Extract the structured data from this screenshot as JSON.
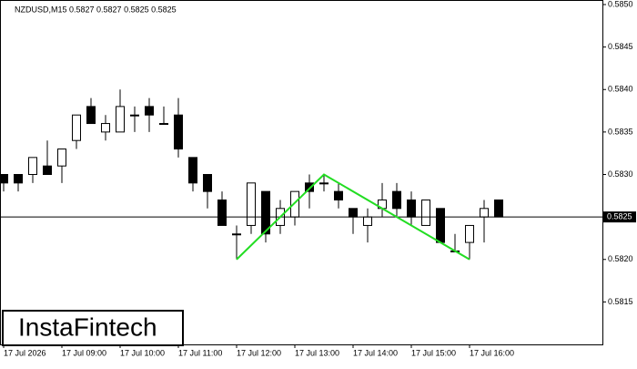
{
  "chart_data": {
    "type": "candlestick",
    "title": "NZDUSD,M15  0.5827 0.5827 0.5825 0.5825",
    "brand": "InstaFintech",
    "categories": [
      "17 Jul 2026",
      null,
      null,
      null,
      "17 Jul 09:00",
      null,
      null,
      null,
      "17 Jul 10:00",
      null,
      null,
      null,
      "17 Jul 11:00",
      null,
      null,
      null,
      "17 Jul 12:00",
      null,
      null,
      null,
      "17 Jul 13:00",
      null,
      null,
      null,
      "17 Jul 14:00",
      null,
      null,
      null,
      "17 Jul 15:00",
      null,
      null,
      null,
      "17 Jul 16:00",
      null,
      null
    ],
    "open": [
      0.583,
      0.583,
      0.583,
      0.5831,
      0.5831,
      0.5834,
      0.5838,
      0.5835,
      0.5835,
      0.5837,
      0.5838,
      0.5836,
      0.5837,
      0.5832,
      0.583,
      0.5827,
      0.5823,
      0.5824,
      0.5828,
      0.5824,
      0.5825,
      0.5829,
      0.5829,
      0.5828,
      0.5826,
      0.5824,
      0.5826,
      0.5828,
      0.5827,
      0.5824,
      0.5826,
      0.5821,
      0.5822,
      0.5825,
      0.5827
    ],
    "high": [
      0.583,
      0.583,
      0.5832,
      0.5834,
      0.5833,
      0.5837,
      0.5839,
      0.5837,
      0.584,
      0.5838,
      0.5839,
      0.5838,
      0.5839,
      0.5832,
      0.583,
      0.5828,
      0.5824,
      0.5829,
      0.5828,
      0.5827,
      0.5828,
      0.583,
      0.583,
      0.5829,
      0.5826,
      0.5826,
      0.5829,
      0.5829,
      0.5828,
      0.5827,
      0.5826,
      0.5823,
      0.5824,
      0.5827,
      0.5827
    ],
    "low": [
      0.5828,
      0.5828,
      0.5829,
      0.583,
      0.5829,
      0.5833,
      0.5836,
      0.5834,
      0.5835,
      0.5835,
      0.5835,
      0.5836,
      0.5832,
      0.5828,
      0.5826,
      0.5824,
      0.582,
      0.5823,
      0.5822,
      0.5823,
      0.5824,
      0.5826,
      0.5828,
      0.5826,
      0.5823,
      0.5822,
      0.5825,
      0.5825,
      0.5824,
      0.5824,
      0.5822,
      0.5821,
      0.582,
      0.5822,
      0.5825
    ],
    "close": [
      0.5829,
      0.5829,
      0.5832,
      0.583,
      0.5833,
      0.5837,
      0.5836,
      0.5836,
      0.5838,
      0.5837,
      0.5837,
      0.5836,
      0.5833,
      0.5829,
      0.5828,
      0.5824,
      0.5823,
      0.5829,
      0.5823,
      0.5826,
      0.5828,
      0.5828,
      0.5829,
      0.5827,
      0.5825,
      0.5825,
      0.5827,
      0.5826,
      0.5825,
      0.5827,
      0.5822,
      0.5821,
      0.5824,
      0.5826,
      0.5825
    ],
    "up_color": "#ffffff",
    "down_color": "#000000",
    "last_price": 0.5825,
    "pattern": {
      "color": "#22dd22",
      "points": [
        {
          "x": 16,
          "y": 0.582
        },
        {
          "x": 22,
          "y": 0.583
        },
        {
          "x": 32,
          "y": 0.582
        }
      ]
    },
    "ylim": [
      0.581,
      0.585
    ],
    "yticks": [
      {
        "value": 0.585,
        "label": "0.5850"
      },
      0.5845,
      {
        "value": 0.584,
        "label": "0.5840"
      },
      0.5835,
      {
        "value": 0.583,
        "label": "0.5830"
      },
      0.5825,
      {
        "value": 0.582,
        "label": "0.5820"
      },
      0.5815
    ]
  }
}
